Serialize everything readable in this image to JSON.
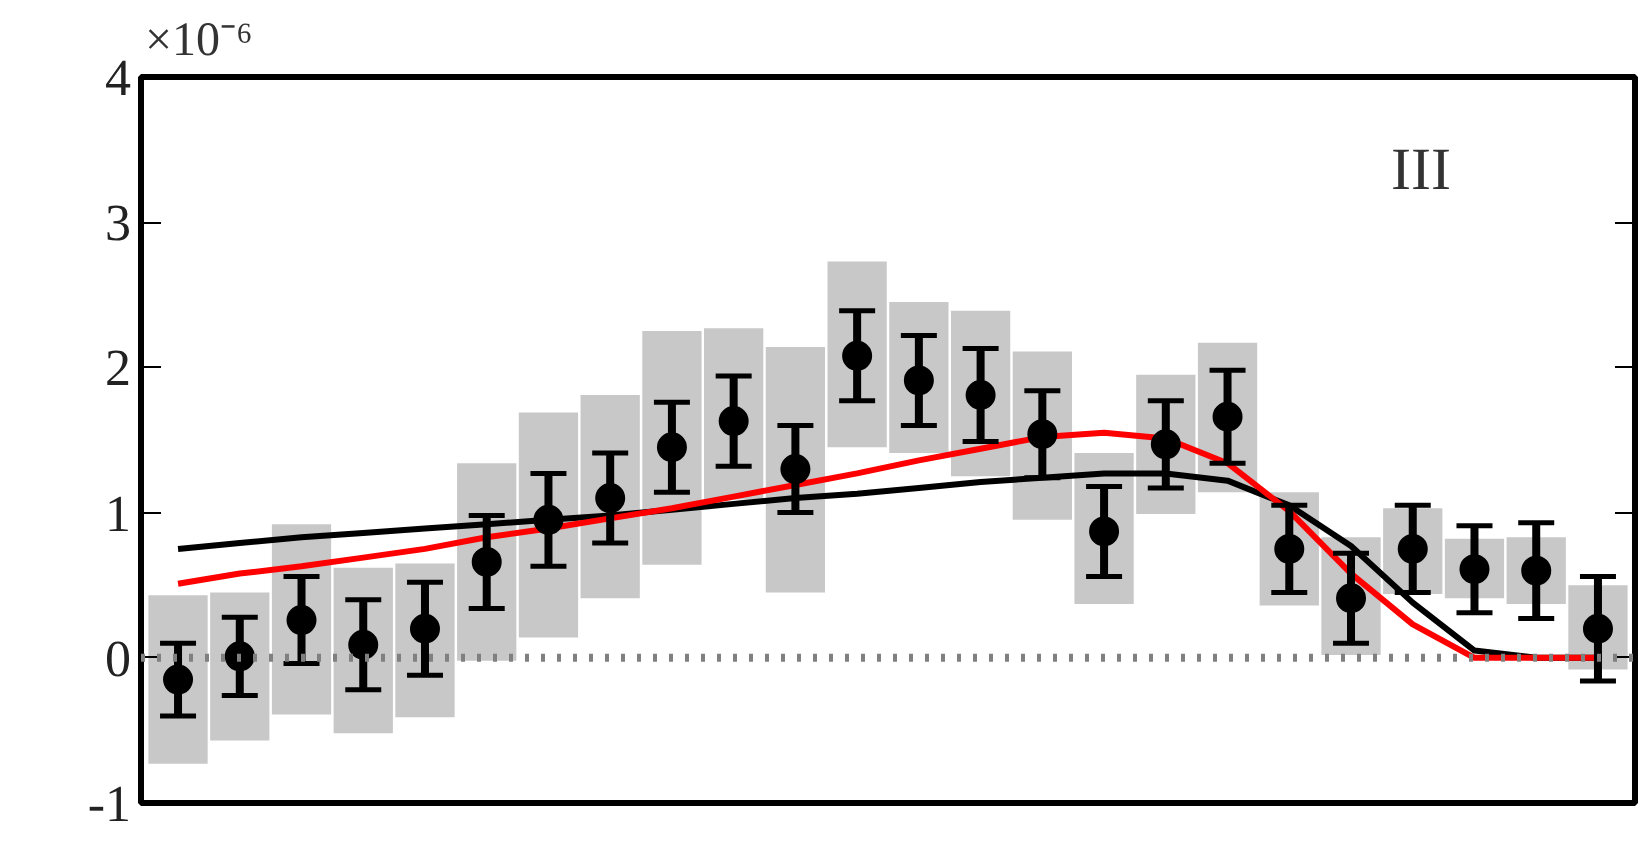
{
  "chart_data": {
    "type": "scatter",
    "annotations": [
      "×10⁻⁶",
      "III"
    ],
    "categories": [
      null,
      null,
      null,
      null,
      null,
      null,
      null,
      null,
      null,
      null,
      null,
      null,
      null,
      null,
      null,
      null,
      null,
      null,
      null,
      null,
      null,
      null,
      null,
      null
    ],
    "ylim": [
      -1,
      4
    ],
    "yticks": [
      -1,
      0,
      1,
      2,
      3,
      4
    ],
    "tick_labels": "y",
    "grid": false,
    "series": [
      {
        "type": "bar",
        "color": "#c8c8c8",
        "base": [
          -0.73,
          -0.57,
          -0.39,
          -0.52,
          -0.41,
          -0.02,
          0.14,
          0.41,
          0.64,
          1.09,
          0.45,
          1.45,
          1.41,
          1.25,
          0.95,
          0.37,
          0.99,
          1.14,
          0.36,
          0.02,
          0.44,
          0.41,
          0.37,
          -0.08
        ],
        "values": [
          1.16,
          1.02,
          1.31,
          1.14,
          1.06,
          1.36,
          1.55,
          1.4,
          1.61,
          1.18,
          1.69,
          1.28,
          1.04,
          1.14,
          1.16,
          1.04,
          0.96,
          1.03,
          0.78,
          0.81,
          0.59,
          0.41,
          0.46,
          0.58
        ]
      },
      {
        "type": "line",
        "color": "#000000",
        "values": [
          0.75,
          0.79,
          0.83,
          0.86,
          0.89,
          0.92,
          0.95,
          0.98,
          1.02,
          1.06,
          1.1,
          1.13,
          1.17,
          1.21,
          1.24,
          1.27,
          1.27,
          1.22,
          1.05,
          0.77,
          0.38,
          0.05,
          0.0,
          0.0
        ]
      },
      {
        "type": "line",
        "color": "#ff0000",
        "values": [
          0.51,
          0.58,
          0.63,
          0.69,
          0.75,
          0.83,
          0.89,
          0.96,
          1.03,
          1.11,
          1.19,
          1.27,
          1.36,
          1.44,
          1.52,
          1.55,
          1.51,
          1.34,
          1.01,
          0.58,
          0.23,
          0.0,
          0.0,
          0.0
        ]
      },
      {
        "color": "#000000",
        "marker": "circle",
        "values": [
          -0.15,
          0.01,
          0.26,
          0.09,
          0.2,
          0.66,
          0.95,
          1.1,
          1.45,
          1.63,
          1.3,
          2.08,
          1.91,
          1.81,
          1.54,
          0.87,
          1.47,
          1.66,
          0.75,
          0.41,
          0.75,
          0.61,
          0.6,
          0.2
        ],
        "errors": [
          0.25,
          0.27,
          0.3,
          0.31,
          0.32,
          0.32,
          0.32,
          0.31,
          0.31,
          0.31,
          0.3,
          0.31,
          0.31,
          0.32,
          0.3,
          0.31,
          0.3,
          0.32,
          0.3,
          0.31,
          0.3,
          0.3,
          0.33,
          0.36
        ]
      }
    ],
    "ref_lines": [
      {
        "axis": "y",
        "value": 0,
        "label": null,
        "color": "#808080",
        "line_style": "dotted"
      }
    ]
  }
}
